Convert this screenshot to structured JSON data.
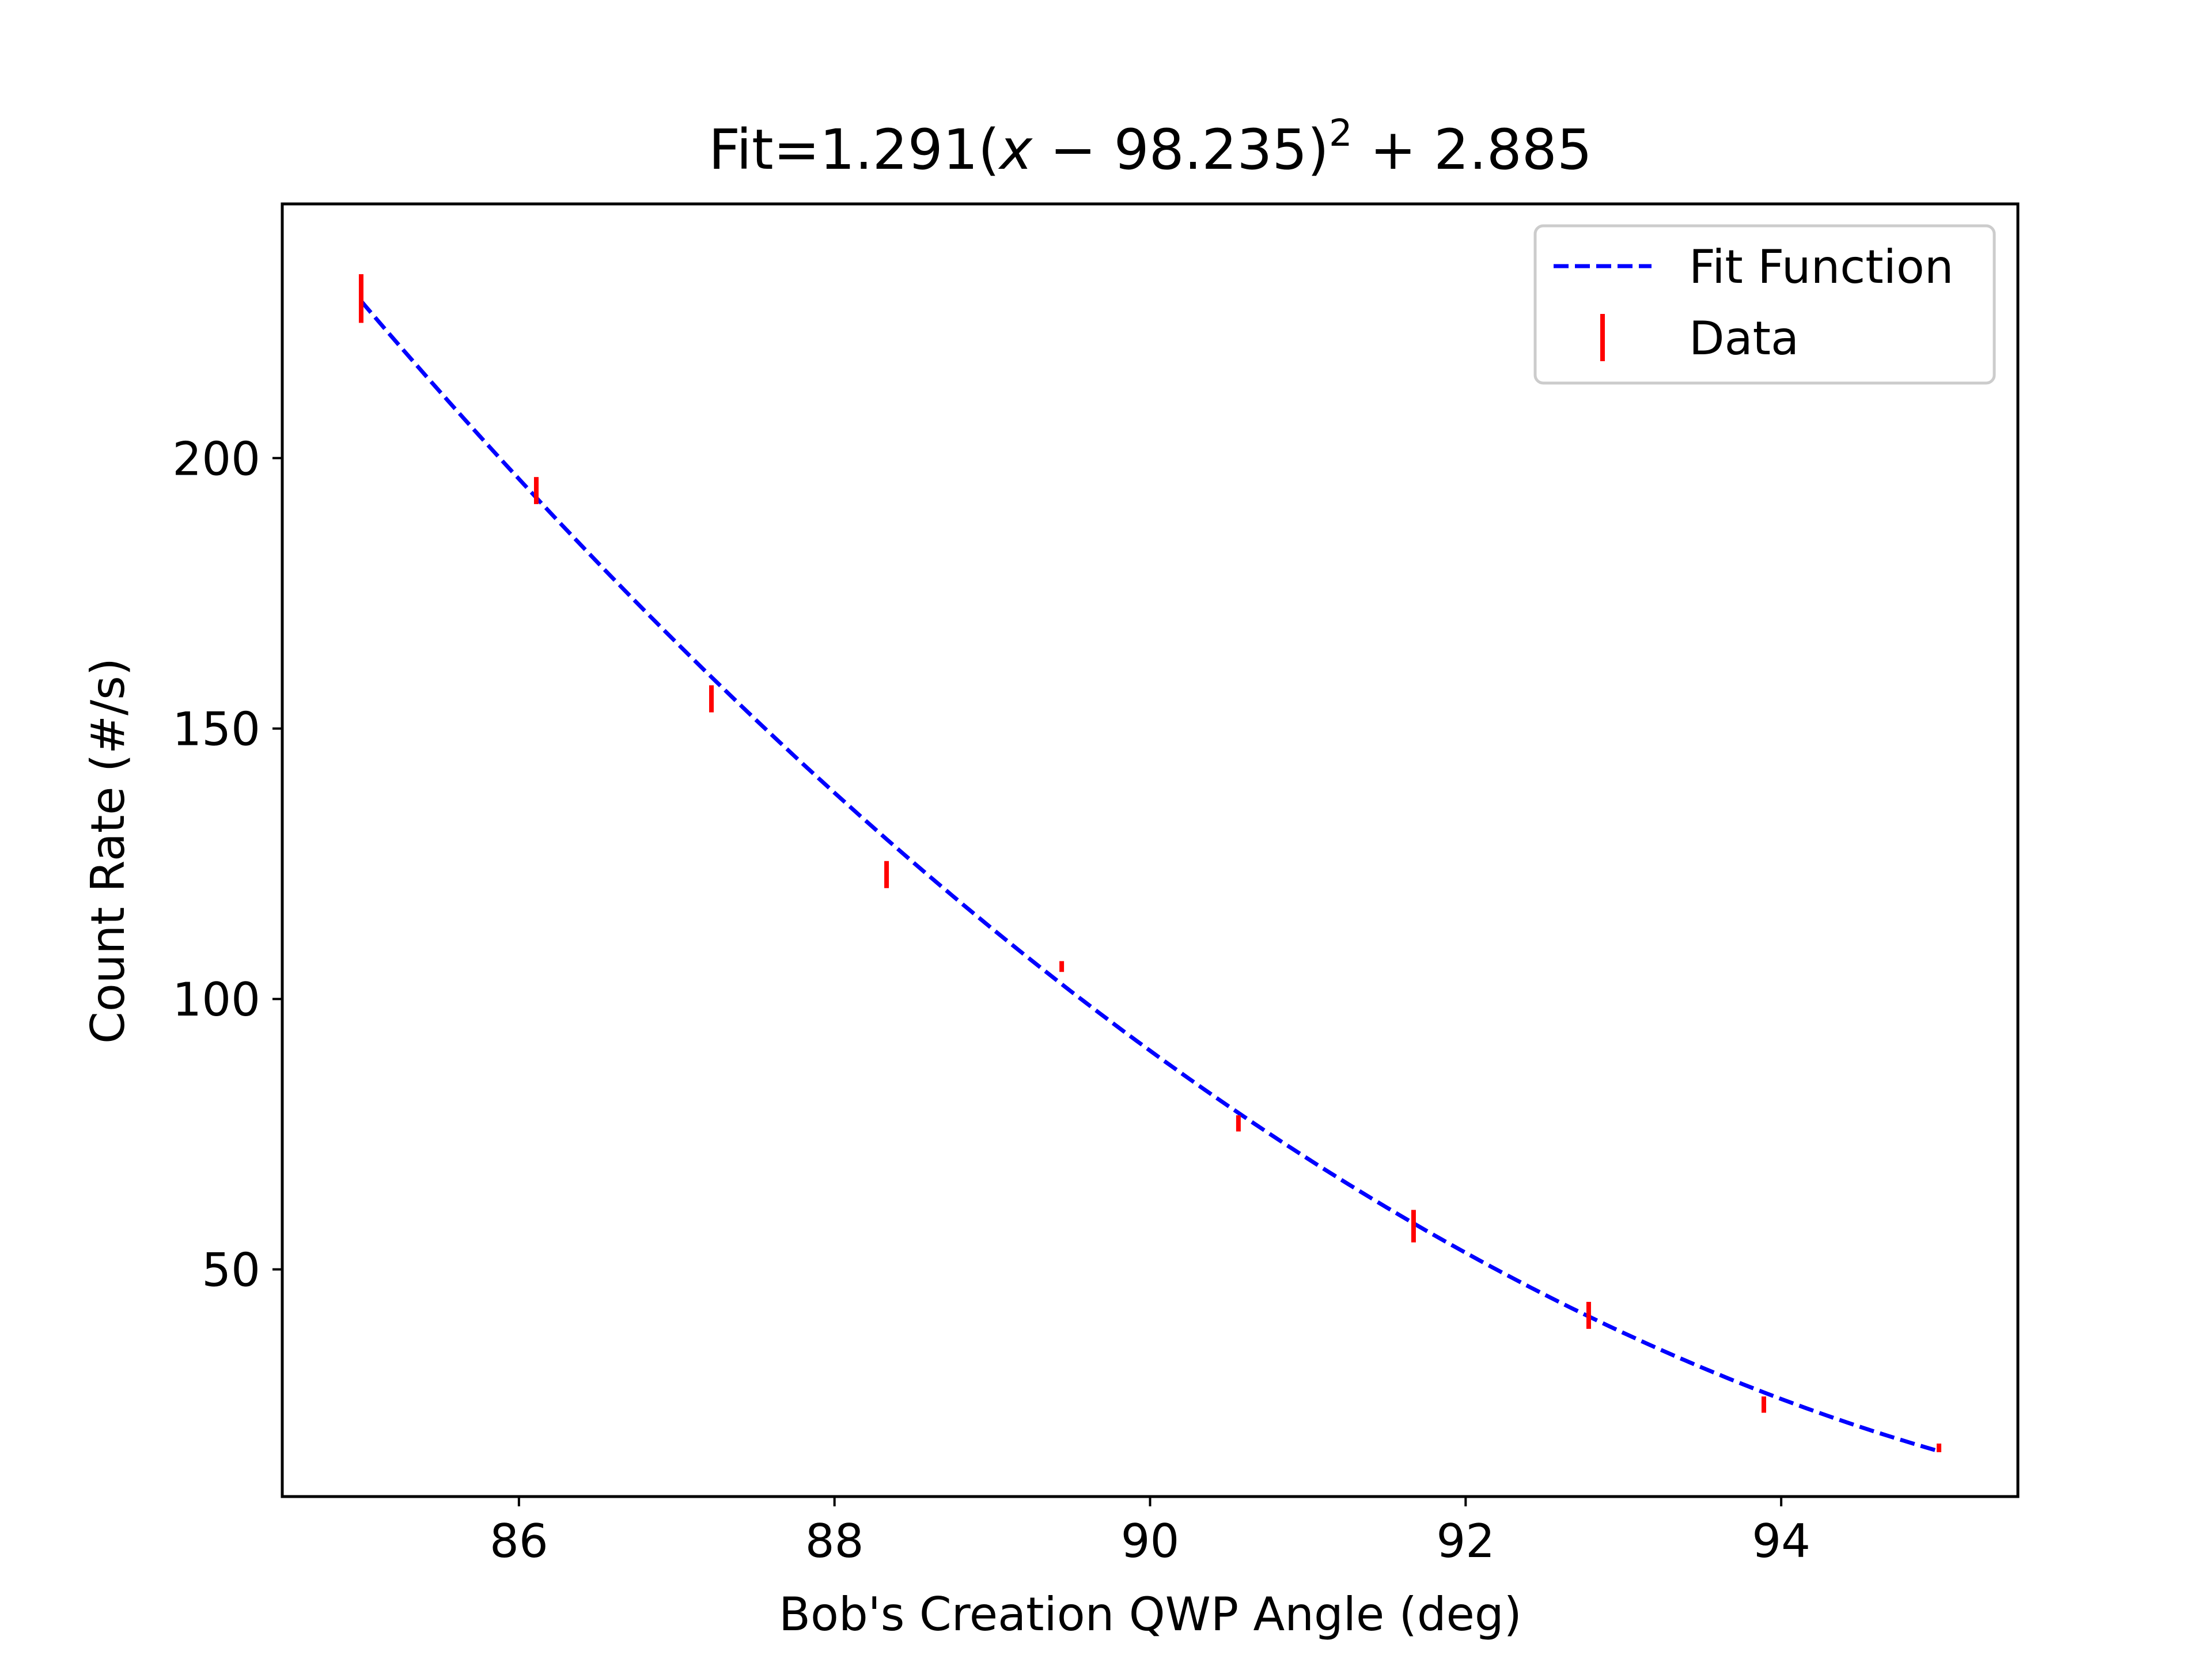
{
  "chart_data": {
    "type": "scatter",
    "title": "Fit=1.291(x − 98.235)² + 2.885",
    "title_parts": {
      "prefix": "Fit=1.291(",
      "variable": "x",
      "middle": " − 98.235)",
      "exponent": "2",
      "suffix": " + 2.885"
    },
    "xlabel": "Bob's Creation QWP Angle (deg)",
    "ylabel": "Count Rate (#/s)",
    "xlim": [
      84.5,
      95.5
    ],
    "ylim": [
      8,
      247
    ],
    "xticks": [
      86,
      88,
      90,
      92,
      94
    ],
    "yticks": [
      50,
      100,
      150,
      200
    ],
    "grid": false,
    "legend_position": "upper right",
    "fit": {
      "name": "Fit Function",
      "a": 1.291,
      "x0": 98.235,
      "c": 2.885,
      "x_range": [
        85,
        95
      ],
      "color": "#0000ff",
      "style": "dashed"
    },
    "series": [
      {
        "name": "Data",
        "color": "#ff0000",
        "x": [
          85.0,
          86.11,
          87.22,
          88.33,
          89.44,
          90.56,
          91.67,
          92.78,
          93.89,
          95.0
        ],
        "y": [
          229.5,
          194.0,
          155.5,
          123.0,
          106.0,
          77.0,
          58.0,
          41.5,
          25.0,
          17.0
        ],
        "yerr": [
          4.5,
          2.5,
          2.5,
          2.5,
          1.0,
          1.5,
          3.0,
          2.5,
          1.5,
          0.8
        ]
      }
    ]
  }
}
